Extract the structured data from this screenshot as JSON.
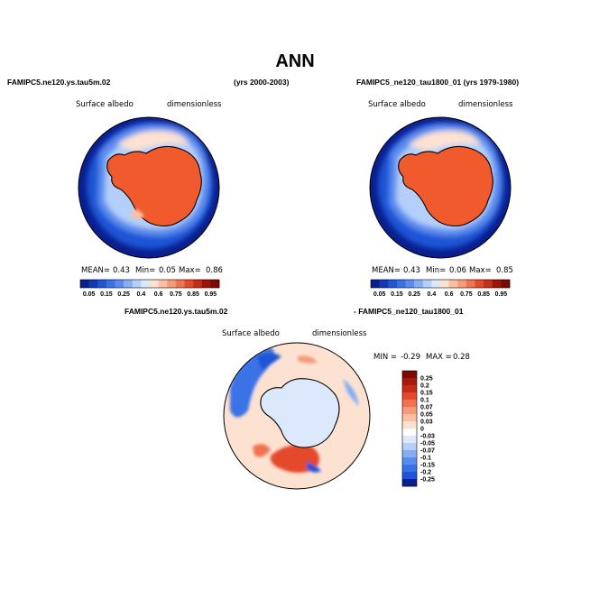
{
  "figure": {
    "title": "ANN",
    "left_case": "FAMIPC5.ne120.ys.tau5m.02",
    "left_years": "(yrs 2000-2003)",
    "right_case": "FAMIPC5_ne120_tau1800_01 (yrs 1979-1980)",
    "diff_case_a": "FAMIPC5.ne120.ys.tau5m.02",
    "diff_case_b": "- FAMIPC5_ne120_tau1800_01"
  },
  "panels": {
    "left": {
      "variable": "Surface albedo",
      "units": "dimensionless",
      "mean_label": "MEAN=",
      "mean": "0.43",
      "min_label": "Min=",
      "min": "0.05",
      "max_label": "Max=",
      "max": "0.86"
    },
    "right": {
      "variable": "Surface albedo",
      "units": "dimensionless",
      "mean_label": "MEAN=",
      "mean": "0.43",
      "min_label": "Min=",
      "min": "0.06",
      "max_label": "Max=",
      "max": "0.85"
    },
    "diff": {
      "variable": "Surface albedo",
      "units": "dimensionless",
      "min_label": "MIN =",
      "min": "-0.29",
      "max_label": "MAX =",
      "max": "0.28"
    }
  },
  "chart_data": [
    {
      "type": "heatmap",
      "projection": "south-polar stereographic",
      "title": "Surface albedo",
      "units": "dimensionless",
      "case": "FAMIPC5.ne120.ys.tau5m.02",
      "years": "2000-2003",
      "mean": 0.43,
      "min": 0.05,
      "max": 0.86,
      "colorbar_labels": [
        "0.05",
        "0.15",
        "0.25",
        "0.4",
        "0.6",
        "0.75",
        "0.85",
        "0.95"
      ],
      "colorbar_levels": [
        0.05,
        0.1,
        0.15,
        0.2,
        0.25,
        0.3,
        0.4,
        0.5,
        0.6,
        0.7,
        0.75,
        0.8,
        0.85,
        0.9,
        0.95
      ],
      "colorbar_colors": [
        "#0a1f8f",
        "#1238b4",
        "#1f55d6",
        "#3a72e6",
        "#5a8cef",
        "#86aef5",
        "#b4cff9",
        "#dce9fc",
        "#fde2d2",
        "#fbc0a2",
        "#f79a78",
        "#f07350",
        "#e34a2c",
        "#c62d17",
        "#9d1408",
        "#7a0a02"
      ]
    },
    {
      "type": "heatmap",
      "projection": "south-polar stereographic",
      "title": "Surface albedo",
      "units": "dimensionless",
      "case": "FAMIPC5_ne120_tau1800_01",
      "years": "1979-1980",
      "mean": 0.43,
      "min": 0.06,
      "max": 0.85,
      "colorbar_labels": [
        "0.05",
        "0.15",
        "0.25",
        "0.4",
        "0.6",
        "0.75",
        "0.85",
        "0.95"
      ],
      "colorbar_levels": [
        0.05,
        0.1,
        0.15,
        0.2,
        0.25,
        0.3,
        0.4,
        0.5,
        0.6,
        0.7,
        0.75,
        0.8,
        0.85,
        0.9,
        0.95
      ],
      "colorbar_colors": [
        "#0a1f8f",
        "#1238b4",
        "#1f55d6",
        "#3a72e6",
        "#5a8cef",
        "#86aef5",
        "#b4cff9",
        "#dce9fc",
        "#fde2d2",
        "#fbc0a2",
        "#f79a78",
        "#f07350",
        "#e34a2c",
        "#c62d17",
        "#9d1408",
        "#7a0a02"
      ]
    },
    {
      "type": "heatmap",
      "projection": "south-polar stereographic",
      "title": "Surface albedo",
      "units": "dimensionless",
      "case": "FAMIPC5.ne120.ys.tau5m.02 - FAMIPC5_ne120_tau1800_01",
      "min": -0.29,
      "max": 0.28,
      "colorbar_labels": [
        "0.25",
        "0.2",
        "0.15",
        "0.1",
        "0.07",
        "0.05",
        "0.03",
        "0",
        "-0.03",
        "-0.05",
        "-0.07",
        "-0.1",
        "-0.15",
        "-0.2",
        "-0.25"
      ],
      "colorbar_colors": [
        "#7a0a02",
        "#a8180b",
        "#c62d17",
        "#e34a2c",
        "#f07350",
        "#f79a78",
        "#fbc0a2",
        "#fde2d2",
        "#ffffff",
        "#dce9fc",
        "#b4cff9",
        "#86aef5",
        "#5a8cef",
        "#3a72e6",
        "#1f55d6",
        "#0a1f8f"
      ]
    }
  ]
}
